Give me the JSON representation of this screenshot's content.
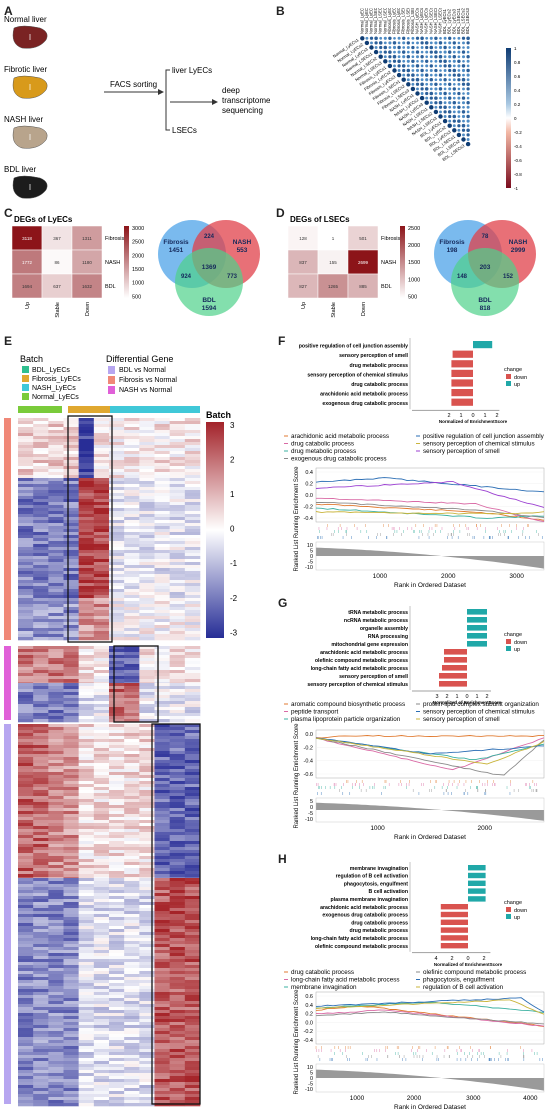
{
  "panel_labels": {
    "a": "A",
    "b": "B",
    "c": "C",
    "d": "D",
    "e": "E",
    "f": "F",
    "g": "G",
    "h": "H"
  },
  "panelA": {
    "livers": [
      "Normal liver",
      "Fibrotic liver",
      "NASH liver",
      "BDL liver"
    ],
    "facs": "FACS sorting",
    "out1": "liver LyECs",
    "out2": "LSECs",
    "seq1": "deep",
    "seq2": "transcriptome",
    "seq3": "sequencing",
    "colors": [
      "#7a2323",
      "#d89a1b",
      "#b8a48c",
      "#1c1c1c"
    ]
  },
  "panelB": {
    "labels": [
      "Normal_LyECs1",
      "Normal_LyECs2",
      "Normal_LyECs3",
      "Normal_LSECs1",
      "Normal_LSECs2",
      "Normal_LSECs3",
      "Fibrosis_LyECs1",
      "Fibrosis_LyECs2",
      "Fibrosis_LyECs3",
      "Fibrosis_LSECs1",
      "Fibrosis_LSECs2",
      "Fibrosis_LSECs3",
      "NASH_LyECs1",
      "NASH_LyECs2",
      "NASH_LyECs3",
      "NASH_LSECs1",
      "NASH_LSECs2",
      "NASH_LSECs3",
      "BDL_LyECs1",
      "BDL_LyECs2",
      "BDL_LyECs3",
      "BDL_LSECs1",
      "BDL_LSECs2",
      "BDL_LSECs3"
    ],
    "scale": [
      "1",
      "0.8",
      "0.6",
      "0.4",
      "0.2",
      "0",
      "-0.2",
      "-0.4",
      "-0.6",
      "-0.8",
      "-1"
    ]
  },
  "panelC": {
    "title": "DEGs of LyECs",
    "cells": [
      [
        "3118",
        "367",
        "1311"
      ],
      [
        "1772",
        "86",
        "1180"
      ],
      [
        "1694",
        "637",
        "1632"
      ]
    ],
    "rows": [
      "Fibrosis",
      "NASH",
      "BDL"
    ],
    "cols": [
      "Up",
      "Stable",
      "Down"
    ],
    "scale": [
      "3000",
      "2500",
      "2000",
      "1500",
      "1000",
      "500"
    ],
    "venn": {
      "fib_label": "Fibrosis",
      "fib": "1451",
      "nash_label": "NASH",
      "nash": "553",
      "bdl_label": "BDL",
      "bdl": "1594",
      "fn": "224",
      "fb": "924",
      "nb": "773",
      "all": "1369"
    }
  },
  "panelD": {
    "title": "DEGs of LSECs",
    "cells": [
      [
        "128",
        "1",
        "501"
      ],
      [
        "837",
        "155",
        "2699"
      ],
      [
        "827",
        "1265",
        "885"
      ]
    ],
    "rows": [
      "Fibrosis",
      "NASH",
      "BDL"
    ],
    "cols": [
      "Up",
      "Stable",
      "Down"
    ],
    "scale": [
      "2500",
      "2000",
      "1500",
      "1000",
      "500"
    ],
    "venn": {
      "fib_label": "Fibrosis",
      "fib": "198",
      "nash_label": "NASH",
      "nash": "2999",
      "bdl_label": "BDL",
      "bdl": "818",
      "fn": "78",
      "fb": "148",
      "nb": "152",
      "all": "203"
    }
  },
  "panelE": {
    "batch_title": "Batch",
    "batch": [
      {
        "label": "BDL_LyECs",
        "color": "#2fbf8f"
      },
      {
        "label": "Fibrosis_LyECs",
        "color": "#e0a830"
      },
      {
        "label": "NASH_LyECs",
        "color": "#40c8d8"
      },
      {
        "label": "Normal_LyECs",
        "color": "#7acb3a"
      }
    ],
    "diff_title": "Differential Gene",
    "diff": [
      {
        "label": "BDL vs Normal",
        "color": "#b7a6f0"
      },
      {
        "label": "Fibrosis vs Normal",
        "color": "#f08878"
      },
      {
        "label": "NASH vs Normal",
        "color": "#e060d8"
      }
    ],
    "scale_title": "Batch",
    "scale": [
      "3",
      "2",
      "1",
      "0",
      "-1",
      "-2",
      "-3"
    ]
  },
  "panelF": {
    "bars": [
      {
        "term": "positive regulation of cell junction assembly",
        "value": 1.6,
        "dir": "up"
      },
      {
        "term": "sensory perception of smell",
        "value": -1.7,
        "dir": "down"
      },
      {
        "term": "drug metabolic process",
        "value": -1.8,
        "dir": "down"
      },
      {
        "term": "sensory perception of chemical stimulus",
        "value": -1.8,
        "dir": "down"
      },
      {
        "term": "drug catabolic process",
        "value": -1.8,
        "dir": "down"
      },
      {
        "term": "arachidonic acid metabolic process",
        "value": -1.8,
        "dir": "down"
      },
      {
        "term": "exogenous drug catabolic process",
        "value": -1.8,
        "dir": "down"
      }
    ],
    "xticks": [
      "2",
      "1",
      "0",
      "1",
      "2"
    ],
    "xlabel": "Normalized of EnrichmentScore",
    "legend_title": "change",
    "legend": [
      "down",
      "up"
    ],
    "gsea_legend": [
      "arachidonic acid metabolic process",
      "drug catabolic process",
      "drug metabolic process",
      "exogenous drug catabolic process",
      "positive regulation of cell junction assembly",
      "sensory perception of chemical stimulus",
      "sensory perception of smell"
    ],
    "yticks": [
      "0.4",
      "0.2",
      "0.0",
      "-0.2",
      "-0.4"
    ],
    "rticks": [
      "10",
      "5",
      "0",
      "-5",
      "-10"
    ],
    "xticks_rank": [
      "1000",
      "2000",
      "3000"
    ],
    "ylabel": "Ranked List Running Enrichment Score",
    "xlabel_rank": "Rank in Ordered Dataset"
  },
  "panelG": {
    "bars": [
      {
        "term": "tRNA metabolic process",
        "value": 2.0,
        "dir": "up"
      },
      {
        "term": "ncRNA metabolic process",
        "value": 2.0,
        "dir": "up"
      },
      {
        "term": "organelle assembly",
        "value": 2.0,
        "dir": "up"
      },
      {
        "term": "RNA processing",
        "value": 2.0,
        "dir": "up"
      },
      {
        "term": "mitochondrial gene expression",
        "value": 2.0,
        "dir": "up"
      },
      {
        "term": "arachidonic acid metabolic process",
        "value": -2.3,
        "dir": "down"
      },
      {
        "term": "olefinic compound metabolic process",
        "value": -2.3,
        "dir": "down"
      },
      {
        "term": "long-chain fatty acid metabolic process",
        "value": -2.5,
        "dir": "down"
      },
      {
        "term": "sensory perception of smell",
        "value": -2.8,
        "dir": "down"
      },
      {
        "term": "sensory perception of chemical stimulus",
        "value": -2.8,
        "dir": "down"
      }
    ],
    "xticks": [
      "3",
      "2",
      "1",
      "0",
      "1",
      "2"
    ],
    "xlabel": "Normalized of EnrichmentScore",
    "legend_title": "change",
    "legend": [
      "down",
      "up"
    ],
    "gsea_legend": [
      "aromatic compound biosynthetic process",
      "peptide transport",
      "plasma lipoprotein particle organization",
      "protein-lipid complex subunit organization",
      "sensory perception of chemical stimulus",
      "sensory perception of smell"
    ],
    "yticks": [
      "0.0",
      "-0.2",
      "-0.4",
      "-0.6"
    ],
    "rticks": [
      "5",
      "0",
      "-5",
      "-10"
    ],
    "xticks_rank": [
      "1000",
      "2000"
    ],
    "ylabel": "Ranked List Running Enrichment Score",
    "xlabel_rank": "Rank in Ordered Dataset"
  },
  "panelH": {
    "bars": [
      {
        "term": "membrane invagination",
        "value": 2.2,
        "dir": "up"
      },
      {
        "term": "regulation of B cell activation",
        "value": 2.2,
        "dir": "up"
      },
      {
        "term": "phagocytosis, engulfment",
        "value": 2.2,
        "dir": "up"
      },
      {
        "term": "B cell activation",
        "value": 2.2,
        "dir": "up"
      },
      {
        "term": "plasma membrane invagination",
        "value": 2.2,
        "dir": "up"
      },
      {
        "term": "arachidonic acid metabolic process",
        "value": -3.4,
        "dir": "down"
      },
      {
        "term": "exogenous drug catabolic process",
        "value": -3.4,
        "dir": "down"
      },
      {
        "term": "drug catabolic process",
        "value": -3.4,
        "dir": "down"
      },
      {
        "term": "drug metabolic process",
        "value": -3.4,
        "dir": "down"
      },
      {
        "term": "long-chain fatty acid metabolic process",
        "value": -3.4,
        "dir": "down"
      },
      {
        "term": "olefinic compound metabolic process",
        "value": -3.4,
        "dir": "down"
      }
    ],
    "xticks": [
      "4",
      "2",
      "0",
      "2"
    ],
    "xlabel": "Normalized of EnrichmentScore",
    "legend_title": "change",
    "legend": [
      "down",
      "up"
    ],
    "gsea_legend": [
      "drug catabolic process",
      "long-chain fatty acid metabolic process",
      "membrane invagination",
      "olefinic compound metabolic process",
      "phagocytosis, engulfment",
      "regulation of B cell activation"
    ],
    "yticks": [
      "0.6",
      "0.4",
      "0.2",
      "0.0",
      "-0.2",
      "-0.4"
    ],
    "rticks": [
      "10",
      "5",
      "0",
      "-5",
      "-10"
    ],
    "xticks_rank": [
      "1000",
      "2000",
      "3000",
      "4000"
    ],
    "ylabel": "Ranked List Running Enrichment Score",
    "xlabel_rank": "Rank in Ordered Dataset"
  },
  "colors": {
    "down": "#d9534f",
    "up": "#20a8a8"
  }
}
